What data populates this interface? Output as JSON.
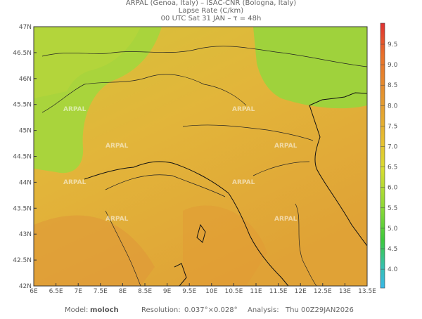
{
  "header": {
    "line1": "ARPAL (Genoa, Italy)  –  ISAC-CNR (Bologna, Italy)",
    "line2": "Lapse Rate (C/km)",
    "line3": "00 UTC Sat 31 JAN  –  τ = 48h"
  },
  "map": {
    "lat_labels": [
      "47N",
      "46.5N",
      "46N",
      "45.5N",
      "45N",
      "44.5N",
      "44N",
      "43.5N",
      "43N",
      "42.5N",
      "42N"
    ],
    "lon_labels": [
      "6E",
      "6.5E",
      "7E",
      "7.5E",
      "8E",
      "8.5E",
      "9E",
      "9.5E",
      "10E",
      "10.5E",
      "11E",
      "11.5E",
      "12E",
      "12.5E",
      "13E",
      "13.5E"
    ],
    "watermark": "ARPAL"
  },
  "colorbar": {
    "labels": [
      "9.5",
      "9.0",
      "8.5",
      "8.0",
      "7.5",
      "7.0",
      "6.5",
      "6.0",
      "5.5",
      "5.0",
      "4.5",
      "4.0"
    ]
  },
  "footer": {
    "model_label": "Model:",
    "model": "moloch",
    "resolution_label": "Resolution:",
    "resolution": "0.037°×0.028°",
    "analysis_label": "Analysis:",
    "analysis": "Thu 00Z29JAN2026"
  }
}
